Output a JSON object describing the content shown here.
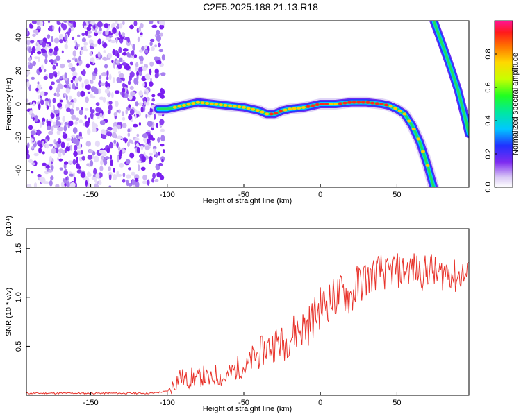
{
  "title": "C2E5.2025.188.21.13.R18",
  "chart_data": [
    {
      "type": "heatmap",
      "xlabel": "Height of straight line (km)",
      "ylabel": "Frequency (Hz)",
      "xlim": [
        -192,
        97
      ],
      "ylim": [
        -50,
        50
      ],
      "xticks": [
        -150,
        -100,
        -50,
        0,
        50
      ],
      "yticks": [
        -40,
        -20,
        0,
        20,
        40
      ],
      "colorbar": {
        "label": "Normalized spectral amplitude",
        "range": [
          0,
          1
        ],
        "ticks": [
          "0.0",
          "0.2",
          "0.4",
          "0.6",
          "0.8"
        ],
        "tick_values": [
          0.0,
          0.2,
          0.4,
          0.6,
          0.8
        ]
      },
      "noise_region": {
        "x": [
          -192,
          -105
        ],
        "y": [
          -50,
          50
        ]
      },
      "trace": {
        "x": [
          -106,
          -100,
          -90,
          -80,
          -70,
          -60,
          -50,
          -40,
          -35,
          -30,
          -25,
          -20,
          -10,
          0,
          10,
          20,
          30,
          40,
          45,
          50,
          55,
          60,
          65,
          70,
          74
        ],
        "y": [
          -3,
          -3,
          -1,
          1,
          0,
          -1,
          -2,
          -4,
          -6,
          -6,
          -4,
          -3,
          -2,
          0,
          0,
          1,
          1,
          0,
          -1,
          -3,
          -6,
          -13,
          -23,
          -37,
          -50
        ]
      },
      "upper_trace": {
        "x": [
          74,
          80,
          85,
          90,
          95,
          97
        ],
        "y": [
          50,
          35,
          22,
          8,
          -10,
          -18
        ]
      }
    },
    {
      "type": "line",
      "xlabel": "Height of straight line (km)",
      "ylabel": "SNR (10 * v/v)",
      "scale_note": "(x10⁴)",
      "xlim": [
        -192,
        97
      ],
      "ylim": [
        0,
        1.7
      ],
      "xticks": [
        -150,
        -100,
        -50,
        0,
        50
      ],
      "yticks": [
        "0.5",
        "1.0",
        "1.5"
      ],
      "ytick_values": [
        0.5,
        1.0,
        1.5
      ],
      "series": [
        {
          "color": "#e8322a",
          "x": [
            -192,
            -150,
            -110,
            -100,
            -95,
            -92,
            -88,
            -84,
            -80,
            -76,
            -72,
            -68,
            -64,
            -60,
            -56,
            -52,
            -48,
            -44,
            -40,
            -36,
            -32,
            -28,
            -24,
            -20,
            -16,
            -12,
            -8,
            -4,
            0,
            4,
            8,
            12,
            16,
            20,
            24,
            28,
            32,
            36,
            40,
            44,
            48,
            52,
            56,
            60,
            64,
            68,
            72,
            76,
            80,
            84,
            88,
            92,
            97
          ],
          "y": [
            0.02,
            0.02,
            0.02,
            0.04,
            0.12,
            0.2,
            0.15,
            0.18,
            0.17,
            0.2,
            0.14,
            0.22,
            0.16,
            0.2,
            0.26,
            0.3,
            0.28,
            0.38,
            0.42,
            0.48,
            0.5,
            0.55,
            0.52,
            0.6,
            0.65,
            0.68,
            0.72,
            0.8,
            0.9,
            0.95,
            0.98,
            1.02,
            1.05,
            1.0,
            1.12,
            1.18,
            1.2,
            1.25,
            1.28,
            1.22,
            1.3,
            1.26,
            1.28,
            1.3,
            1.27,
            1.25,
            1.3,
            1.22,
            1.25,
            1.28,
            1.2,
            1.24,
            1.2
          ]
        }
      ]
    }
  ]
}
